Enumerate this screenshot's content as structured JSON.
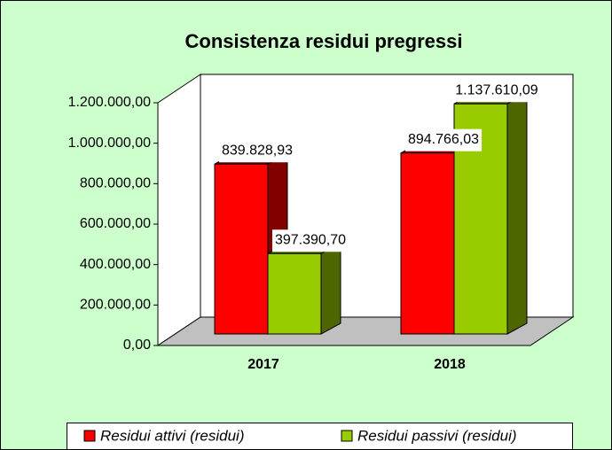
{
  "chart_data": {
    "type": "bar3d",
    "title": "Consistenza residui pregressi",
    "categories": [
      "2017",
      "2018"
    ],
    "series": [
      {
        "name": "Residui attivi (residui)",
        "color": "#ff0000",
        "side": "#800000",
        "values": [
          839828.93,
          894766.03
        ],
        "value_labels": [
          "839.828,93",
          "894.766,03"
        ]
      },
      {
        "name": "Residui passivi (residui)",
        "color": "#99cc00",
        "side": "#4d6600",
        "values": [
          397390.7,
          1137610.09
        ],
        "value_labels": [
          "397.390,70",
          "1.137.610,09"
        ]
      }
    ],
    "ylim": [
      0,
      1200000
    ],
    "yticks": [
      {
        "value": 0,
        "label": "0,00"
      },
      {
        "value": 200000,
        "label": "200.000,00"
      },
      {
        "value": 400000,
        "label": "400.000,00"
      },
      {
        "value": 600000,
        "label": "600.000,00"
      },
      {
        "value": 800000,
        "label": "800.000,00"
      },
      {
        "value": 1000000,
        "label": "1.000.000,00"
      },
      {
        "value": 1200000,
        "label": "1.200.000,00"
      }
    ],
    "legend": "bottom"
  }
}
